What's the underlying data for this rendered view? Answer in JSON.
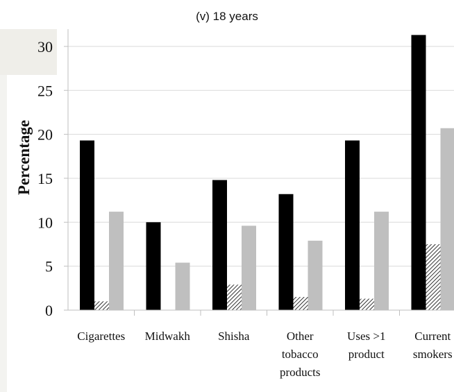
{
  "figure": {
    "title": "(v) 18 years"
  },
  "chart_data": {
    "type": "bar",
    "title": "",
    "xlabel": "",
    "ylabel": "Percentage",
    "ylim": [
      0,
      32
    ],
    "yticks": [
      0,
      5,
      10,
      15,
      20,
      25,
      30
    ],
    "grid": true,
    "legend": "none",
    "categories": [
      [
        "Cigarettes"
      ],
      [
        "Midwakh"
      ],
      [
        "Shisha"
      ],
      [
        "Other",
        "tobacco",
        "products"
      ],
      [
        "Uses >1",
        "product"
      ],
      [
        "Current",
        "smokers"
      ]
    ],
    "series": [
      {
        "style": "solid",
        "color": "#000000",
        "values": [
          19.3,
          10.0,
          14.8,
          13.2,
          19.3,
          31.3
        ]
      },
      {
        "style": "hatched",
        "color": "#000000",
        "values": [
          1.0,
          0.0,
          2.9,
          1.5,
          1.3,
          7.5
        ]
      },
      {
        "style": "solid",
        "color": "#bfbfbf",
        "values": [
          11.2,
          5.4,
          9.6,
          7.9,
          11.2,
          20.7
        ]
      }
    ],
    "colors": {
      "grid": "#d9d9d9",
      "axis": "#bfbfbf",
      "background": "#ffffff"
    }
  }
}
